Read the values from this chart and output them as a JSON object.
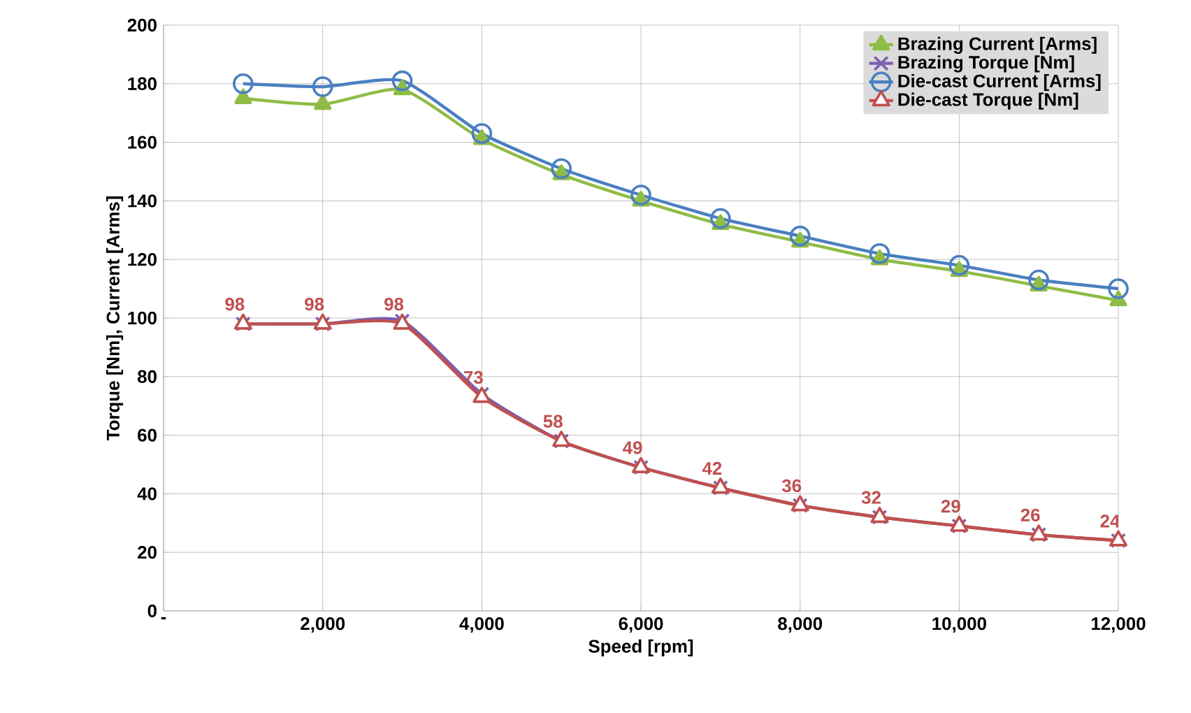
{
  "chart_data": {
    "type": "line",
    "xlabel": "Speed [rpm]",
    "ylabel": "Torque [Nm], Current [Arms]",
    "x": [
      1000,
      2000,
      3000,
      4000,
      5000,
      6000,
      7000,
      8000,
      9000,
      10000,
      11000,
      12000
    ],
    "xlim": [
      0,
      12000
    ],
    "xticks": [
      {
        "value": 0,
        "label": "-"
      },
      {
        "value": 2000,
        "label": "2,000"
      },
      {
        "value": 4000,
        "label": "4,000"
      },
      {
        "value": 6000,
        "label": "6,000"
      },
      {
        "value": 8000,
        "label": "8,000"
      },
      {
        "value": 10000,
        "label": "10,000"
      },
      {
        "value": 12000,
        "label": "12,000"
      }
    ],
    "ylim": [
      0,
      200
    ],
    "yticks": [
      0,
      20,
      40,
      60,
      80,
      100,
      120,
      140,
      160,
      180,
      200
    ],
    "grid": true,
    "legend": "top right",
    "series": [
      {
        "name": "Brazing Current [Arms]",
        "color": "#8fbc45",
        "marker": "triangle",
        "values": [
          175,
          173,
          178,
          161,
          149,
          140,
          132,
          126,
          120,
          116,
          111,
          106
        ]
      },
      {
        "name": "Brazing Torque [Nm]",
        "color": "#7b5fb3",
        "marker": "cross",
        "values": [
          98,
          98,
          99,
          74,
          58,
          49,
          42,
          36,
          32,
          29,
          26,
          24
        ]
      },
      {
        "name": "Die-cast Current [Arms]",
        "color": "#4a7fc1",
        "marker": "circle",
        "values": [
          180,
          179,
          181,
          163,
          151,
          142,
          134,
          128,
          122,
          118,
          113,
          110
        ]
      },
      {
        "name": "Die-cast Torque [Nm]",
        "color": "#c0504d",
        "marker": "triangle",
        "values": [
          98,
          98,
          98,
          73,
          58,
          49,
          42,
          36,
          32,
          29,
          26,
          24
        ],
        "value_labels": [
          "98",
          "98",
          "98",
          "73",
          "58",
          "49",
          "42",
          "36",
          "32",
          "29",
          "26",
          "24"
        ]
      }
    ]
  }
}
